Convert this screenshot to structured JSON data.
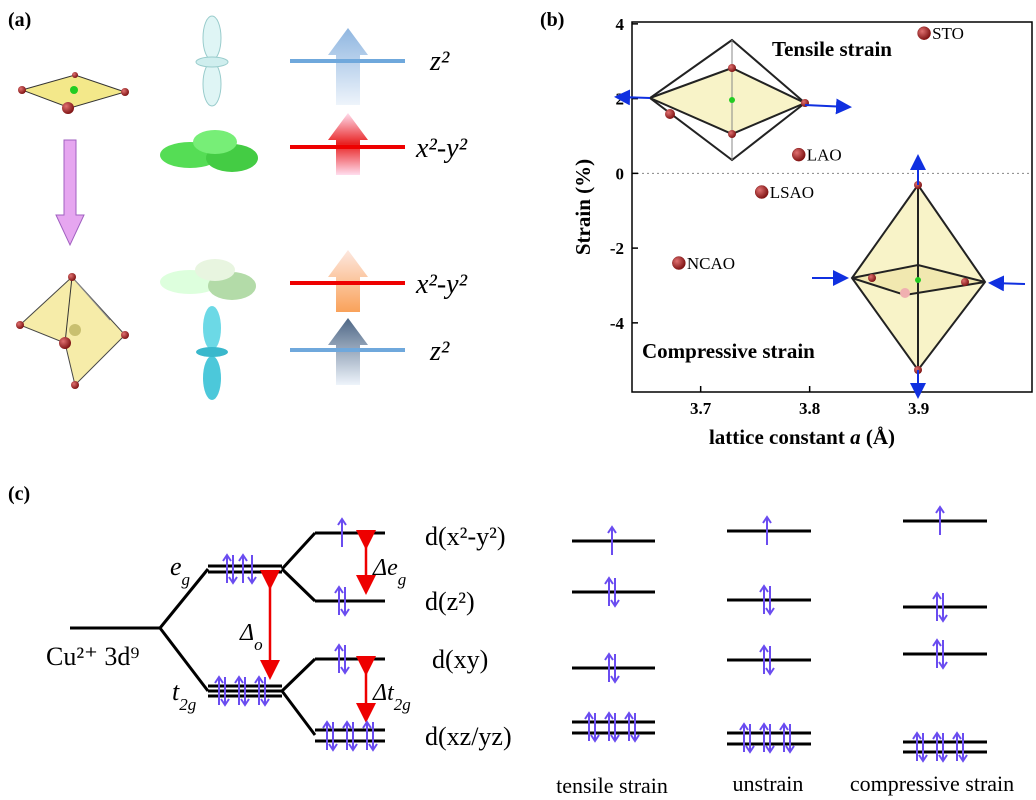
{
  "panel_a": {
    "label": "(a)",
    "levels": [
      "z²",
      "x²-y²",
      "x²-y²",
      "z²"
    ]
  },
  "chart_data": {
    "type": "scatter",
    "panel_label": "(b)",
    "x": [
      3.905,
      3.79,
      3.756,
      3.68
    ],
    "values": [
      3.75,
      0.5,
      -0.5,
      -2.4
    ],
    "point_labels": [
      "STO",
      "LAO",
      "LSAO",
      "NCAO"
    ],
    "color": "#8b1a1a",
    "xlim": [
      3.637,
      4.004
    ],
    "ylim": [
      -5.85,
      4.05
    ],
    "xticks": [
      3.7,
      3.8,
      3.9
    ],
    "yticks": [
      -4,
      -2,
      0,
      2,
      4
    ],
    "reference_line": 0,
    "x_label": [
      "lattice constant ",
      "a",
      " (Å)"
    ],
    "y_label": "Strain (%)",
    "annotations": [
      "Tensile strain",
      "Compressive strain"
    ]
  },
  "panel_c": {
    "label": "(c)",
    "ion": "Cu²⁺ 3d⁹",
    "eg": {
      "main": "e",
      "sub": "g"
    },
    "t2g": {
      "main": "t",
      "sub": "2g"
    },
    "delta_o": {
      "main": "Δ",
      "sub": "o"
    },
    "delta_eg": {
      "main": "Δe",
      "sub": "g"
    },
    "delta_t2g": {
      "main": "Δt",
      "sub": "2g"
    },
    "orbitals": [
      "d(x²-y²)",
      "d(z²)",
      "d(xy)",
      "d(xz/yz)"
    ],
    "columns": [
      "tensile strain",
      "unstrain",
      "compressive strain"
    ]
  }
}
